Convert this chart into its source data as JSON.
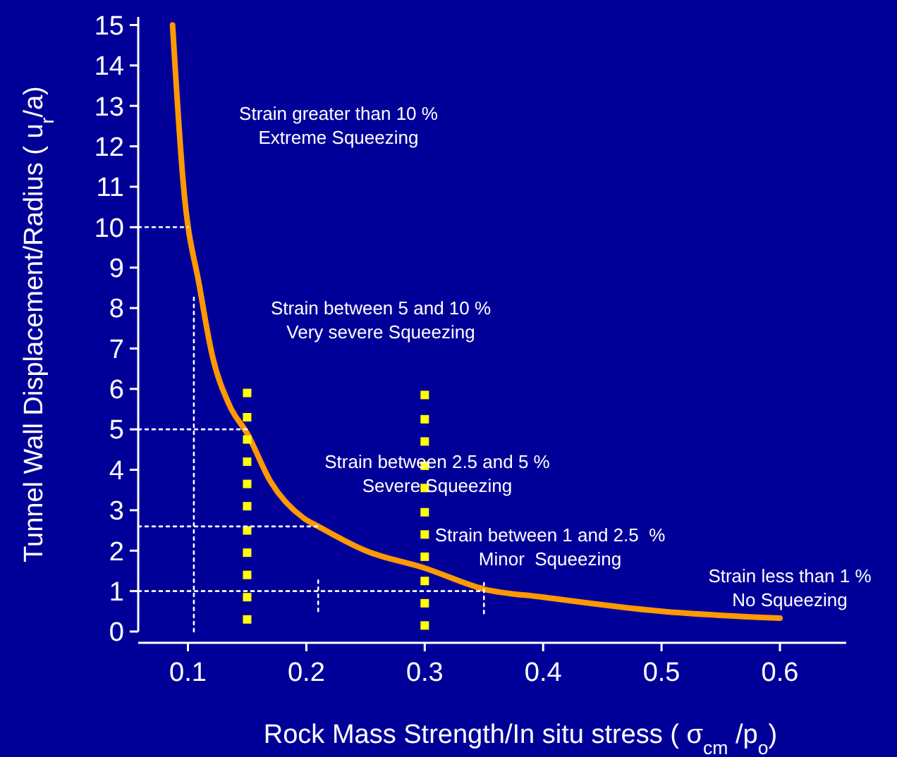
{
  "chart_data": {
    "type": "line",
    "xlabel": "Rock Mass Strength/In situ stress ( σ$_{cm}$ /p$_{o}$)",
    "ylabel": "Tunnel Wall Displacement/Radius ( u$_{r}$/a)",
    "xlim": [
      0.058,
      0.656
    ],
    "ylim": [
      0,
      15.2
    ],
    "xticks": [
      0.1,
      0.2,
      0.3,
      0.4,
      0.5,
      0.6
    ],
    "yticks": [
      0,
      1,
      2,
      3,
      4,
      5,
      6,
      7,
      8,
      9,
      10,
      11,
      12,
      13,
      14,
      15
    ],
    "grid": false,
    "series": [
      {
        "color": "#ff9900",
        "x": [
          0.087,
          0.096,
          0.11,
          0.12,
          0.135,
          0.15,
          0.17,
          0.198,
          0.21,
          0.25,
          0.3,
          0.35,
          0.4,
          0.5,
          0.6
        ],
        "values": [
          15,
          11.1,
          8.5,
          6.9,
          5.6,
          4.9,
          3.7,
          2.8,
          2.6,
          2.0,
          1.57,
          1.05,
          0.85,
          0.5,
          0.33
        ],
        "line_style": "solid",
        "marker": "none"
      },
      {
        "type": "scatter",
        "color": "#ffff00",
        "marker": "square",
        "x": [
          0.15,
          0.15,
          0.15,
          0.15,
          0.15,
          0.15,
          0.15,
          0.15,
          0.15,
          0.15,
          0.15
        ],
        "values": [
          0.3,
          0.85,
          1.4,
          1.95,
          2.5,
          3.1,
          3.65,
          4.2,
          4.75,
          5.3,
          5.9
        ]
      },
      {
        "type": "scatter",
        "color": "#ffff00",
        "marker": "square",
        "x": [
          0.3,
          0.3,
          0.3,
          0.3,
          0.3,
          0.3,
          0.3,
          0.3,
          0.3,
          0.3,
          0.3
        ],
        "values": [
          0.15,
          0.7,
          1.25,
          1.85,
          2.4,
          2.95,
          3.55,
          4.1,
          4.7,
          5.25,
          5.85
        ]
      },
      {
        "color": "#ffffff",
        "line_style": "dotted",
        "marker": "none",
        "x": [
          0.058,
          0.1
        ],
        "values": [
          10,
          10
        ]
      },
      {
        "color": "#ffffff",
        "line_style": "dotted",
        "marker": "none",
        "x": [
          0.105,
          0.105
        ],
        "values": [
          0,
          8.3
        ]
      },
      {
        "color": "#ffffff",
        "line_style": "dotted",
        "marker": "none",
        "x": [
          0.058,
          0.15
        ],
        "values": [
          5,
          5
        ]
      },
      {
        "color": "#ffffff",
        "line_style": "dotted",
        "marker": "none",
        "x": [
          0.058,
          0.21
        ],
        "values": [
          2.6,
          2.6
        ]
      },
      {
        "color": "#ffffff",
        "line_style": "dotted",
        "marker": "none",
        "x": [
          0.21,
          0.21
        ],
        "values": [
          0.5,
          1.3
        ]
      },
      {
        "color": "#ffffff",
        "line_style": "dotted",
        "marker": "none",
        "x": [
          0.058,
          0.35
        ],
        "values": [
          1,
          1
        ]
      },
      {
        "color": "#ffffff",
        "line_style": "dotted",
        "marker": "none",
        "x": [
          0.35,
          0.35
        ],
        "values": [
          0.45,
          1.2
        ]
      }
    ],
    "annotations": [
      "Strain greater than 10 %\nExtreme Squeezing",
      "Strain between 5 and 10 %\nVery severe Squeezing",
      "Strain between 2.5 and 5 %\nSevere Squeezing",
      "Strain between 1 and 2.5  %\nMinor  Squeezing",
      "Strain less than 1 %\nNo Squeezing"
    ]
  }
}
